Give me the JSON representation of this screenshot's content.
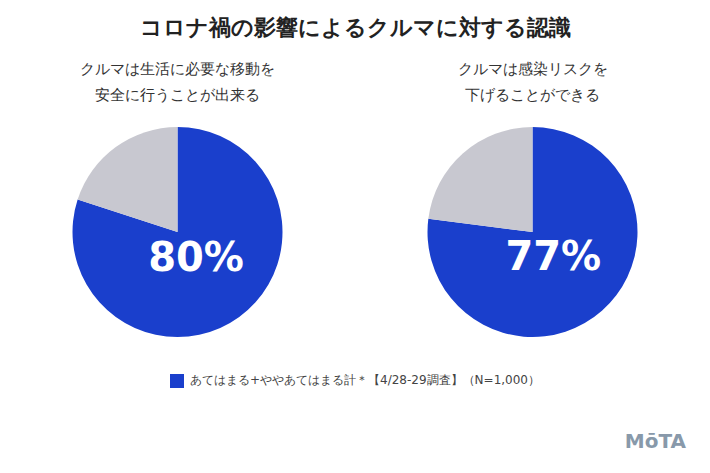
{
  "title": "コロナ禍の影響によるクルマに対する認識",
  "annotations": [
    "MōTA"
  ],
  "chart_data": [
    {
      "type": "pie",
      "title": "クルマは生活に必要な移動を\n安全に行うことが出来る",
      "categories": [
        "あてはまる+ややあてはまる計＊【4/28-29調査】（N=1,000）",
        null
      ],
      "values": [
        80,
        20
      ],
      "colors": [
        "#1a3fcc",
        "#c8c8d0"
      ],
      "value_labels": [
        "80%",
        null
      ],
      "data_labels": true,
      "legend": "bottom"
    },
    {
      "type": "pie",
      "title": "クルマは感染リスクを\n下げることができる",
      "categories": [
        "あてはまる+ややあてはまる計＊【4/28-29調査】（N=1,000）",
        null
      ],
      "values": [
        77,
        23
      ],
      "colors": [
        "#1a3fcc",
        "#c8c8d0"
      ],
      "value_labels": [
        "77%",
        null
      ],
      "data_labels": true,
      "legend": "bottom"
    }
  ]
}
